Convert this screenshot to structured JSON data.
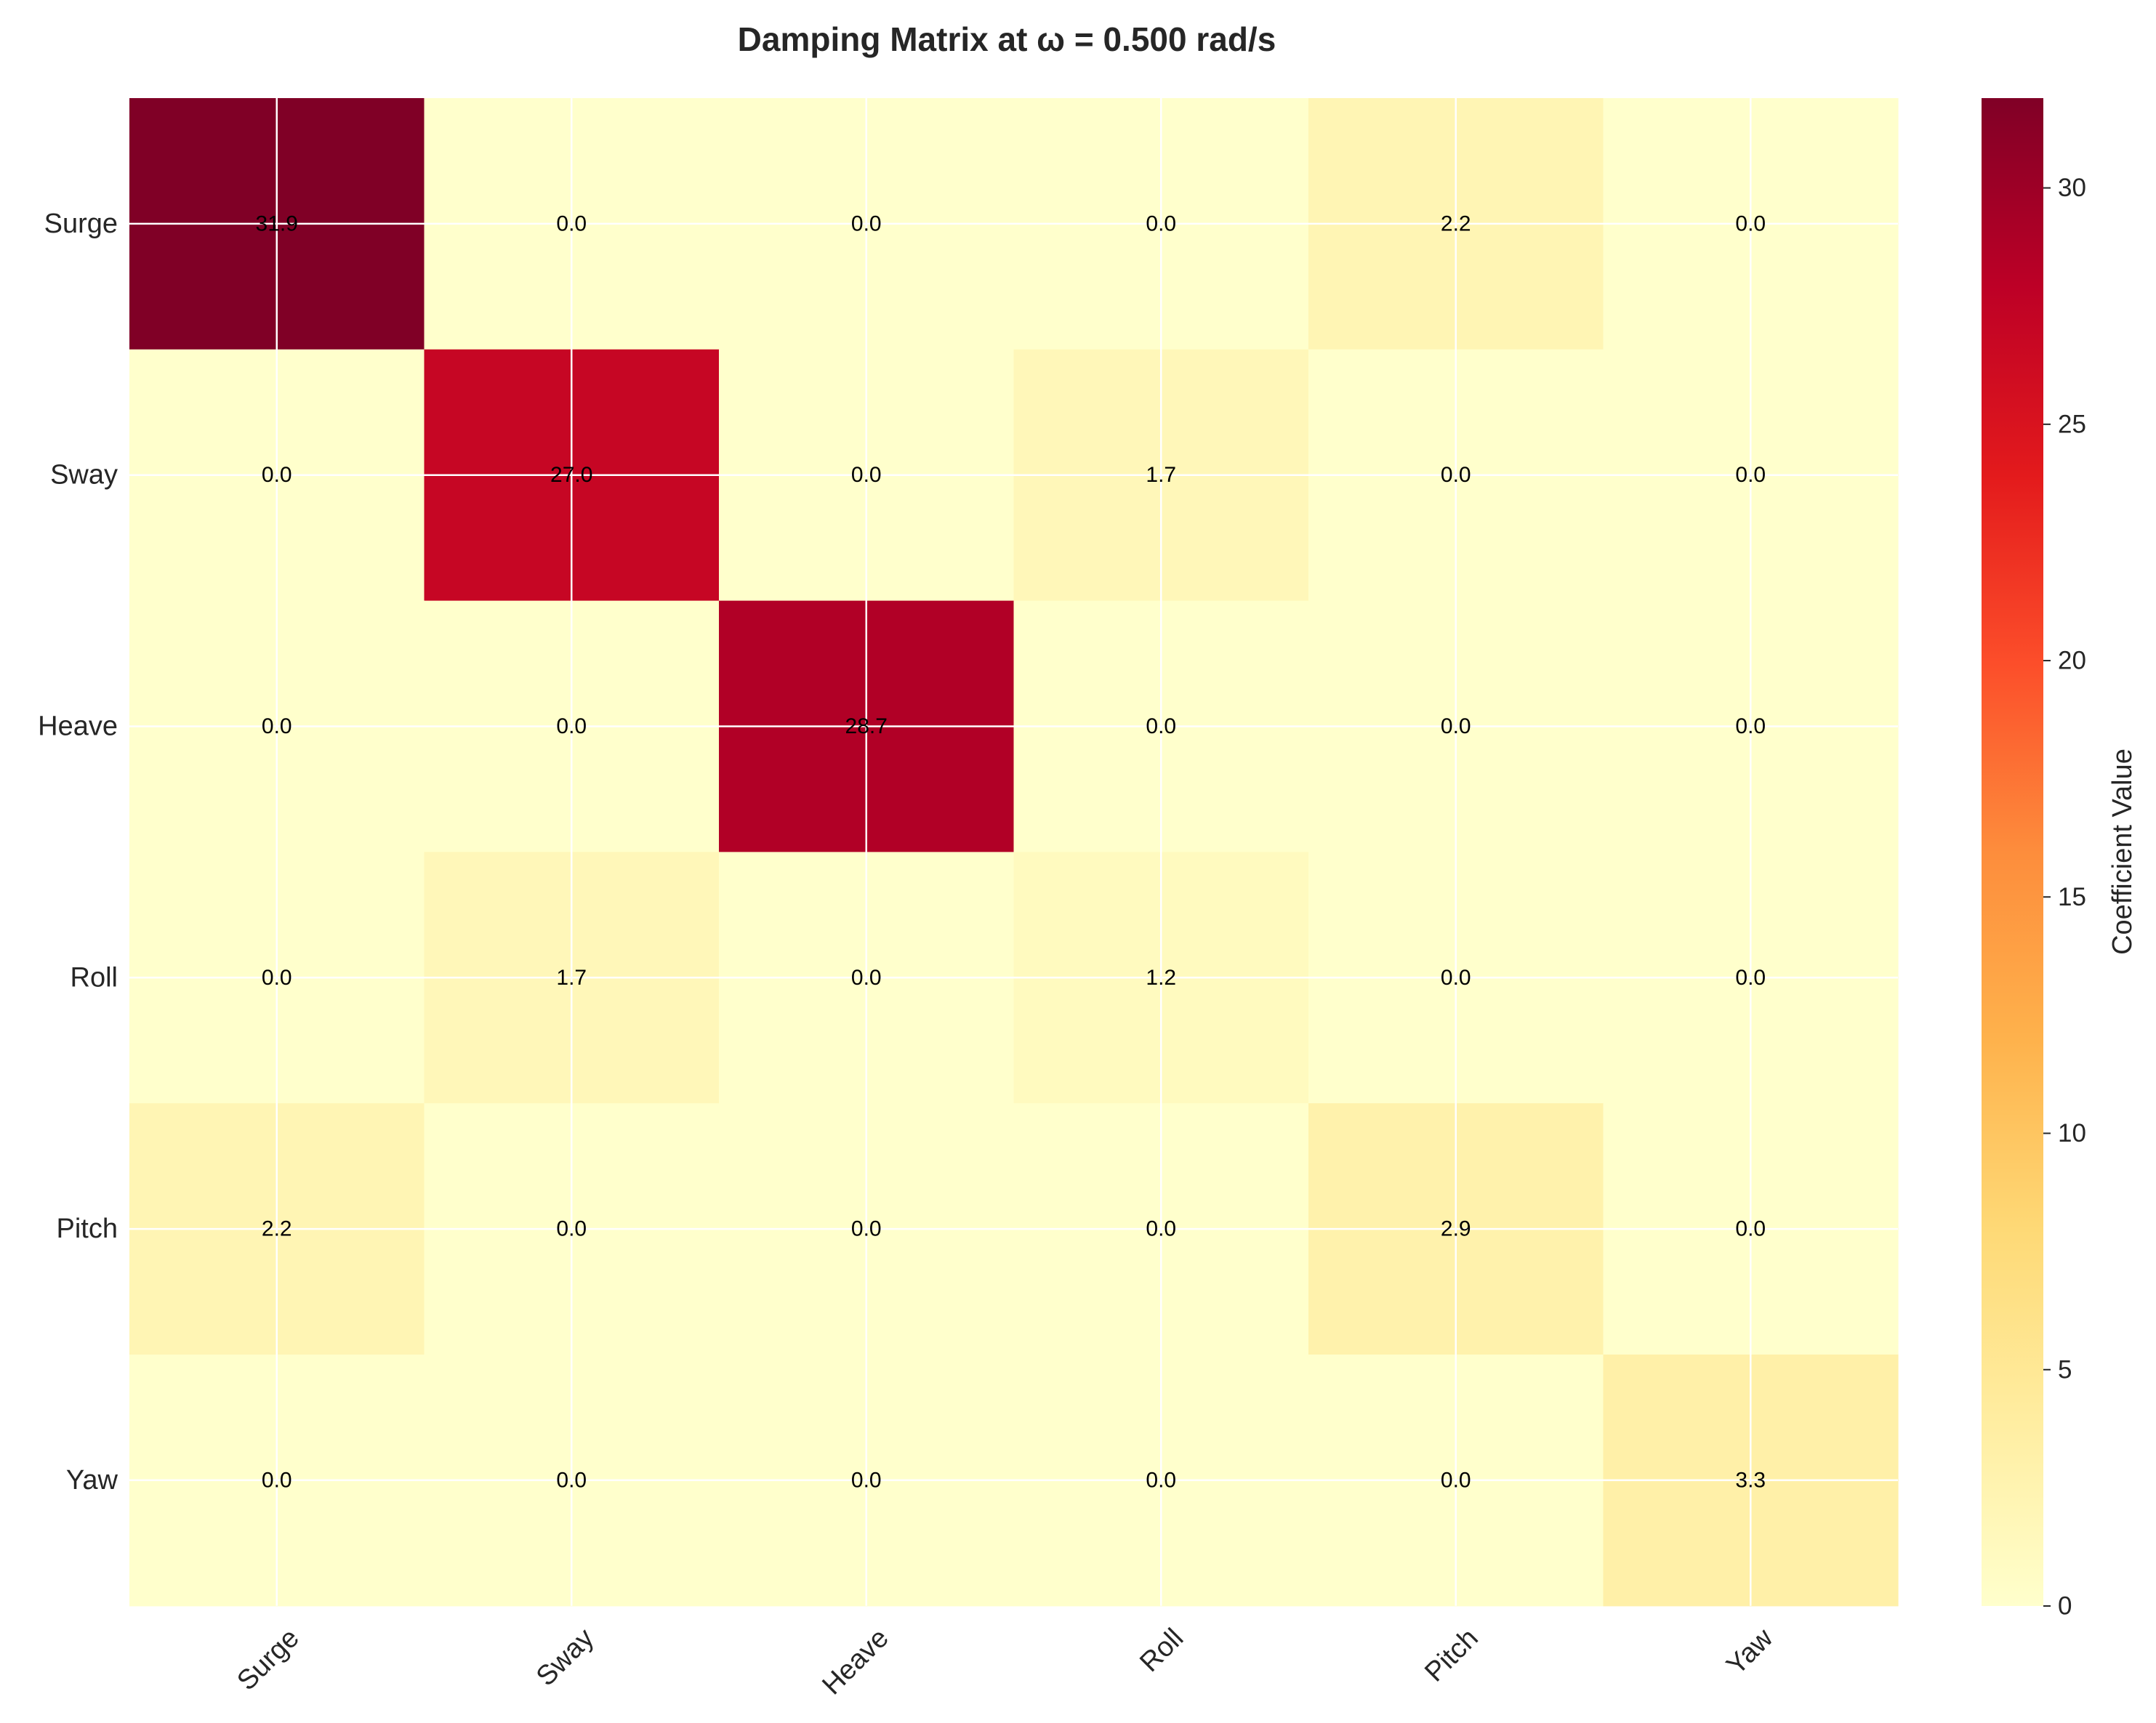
{
  "chart_data": {
    "type": "heatmap",
    "title": "Damping Matrix at ω = 0.500 rad/s",
    "x_categories": [
      "Surge",
      "Sway",
      "Heave",
      "Roll",
      "Pitch",
      "Yaw"
    ],
    "y_categories": [
      "Surge",
      "Sway",
      "Heave",
      "Roll",
      "Pitch",
      "Yaw"
    ],
    "values": [
      [
        31.9,
        0.0,
        0.0,
        0.0,
        2.2,
        0.0
      ],
      [
        0.0,
        27.0,
        0.0,
        1.7,
        0.0,
        0.0
      ],
      [
        0.0,
        0.0,
        28.7,
        0.0,
        0.0,
        0.0
      ],
      [
        0.0,
        1.7,
        0.0,
        1.2,
        0.0,
        0.0
      ],
      [
        2.2,
        0.0,
        0.0,
        0.0,
        2.9,
        0.0
      ],
      [
        0.0,
        0.0,
        0.0,
        0.0,
        0.0,
        3.3
      ]
    ],
    "cell_labels": [
      [
        "31.9",
        "0.0",
        "0.0",
        "0.0",
        "2.2",
        "0.0"
      ],
      [
        "0.0",
        "27.0",
        "0.0",
        "1.7",
        "0.0",
        "0.0"
      ],
      [
        "0.0",
        "0.0",
        "28.7",
        "0.0",
        "0.0",
        "0.0"
      ],
      [
        "0.0",
        "1.7",
        "0.0",
        "1.2",
        "0.0",
        "0.0"
      ],
      [
        "2.2",
        "0.0",
        "0.0",
        "0.0",
        "2.9",
        "0.0"
      ],
      [
        "0.0",
        "0.0",
        "0.0",
        "0.0",
        "0.0",
        "3.3"
      ]
    ],
    "colormap": "YlOrRd",
    "color_range": [
      0,
      31.9
    ],
    "colorbar": {
      "label": "Coefficient Value",
      "ticks": [
        0,
        5,
        10,
        15,
        20,
        25,
        30
      ],
      "tick_labels": [
        "0",
        "5",
        "10",
        "15",
        "20",
        "25",
        "30"
      ]
    },
    "grid": true,
    "x_tick_rotation": "45 degrees"
  }
}
